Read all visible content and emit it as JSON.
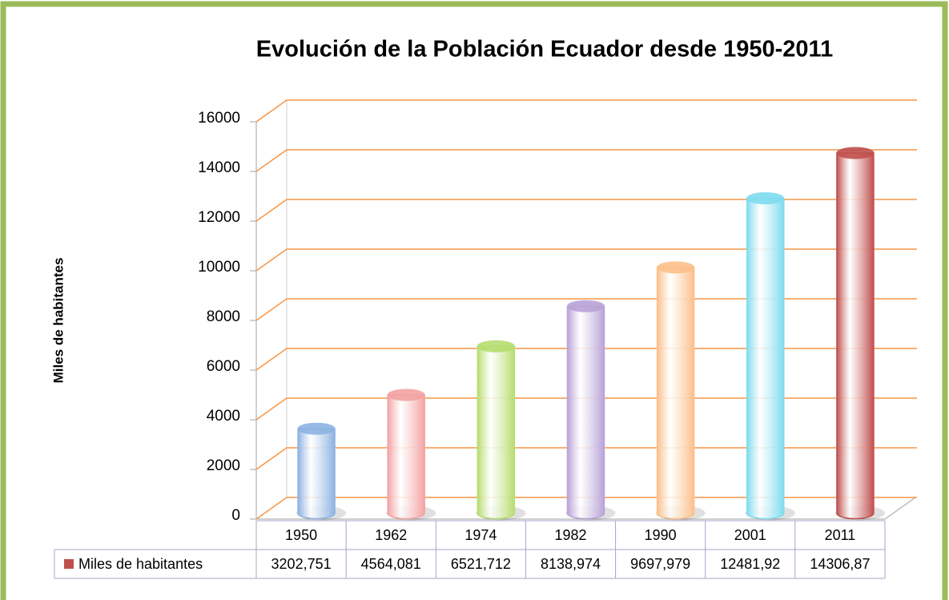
{
  "chart_data": {
    "type": "bar3d",
    "title": "Evolución  de la Población Ecuador  desde 1950-2011",
    "y_label": "Miles de habitantes",
    "categories": [
      "1950",
      "1962",
      "1974",
      "1982",
      "1990",
      "2001",
      "2011"
    ],
    "series": [
      {
        "name": "Miles de habitantes",
        "color": "#c0504d",
        "values": [
          3202.751,
          4564.081,
          6521.712,
          8138.974,
          9697.979,
          12481.92,
          14306.87
        ],
        "value_labels": [
          "3202,751",
          "4564,081",
          "6521,712",
          "8138,974",
          "9697,979",
          "12481,92",
          "14306,87"
        ]
      }
    ],
    "colors": [
      "#8db3e2",
      "#f4a3a3",
      "#b7dd6f",
      "#b9a3d8",
      "#fbc08a",
      "#7fdcf0",
      "#c0504d"
    ],
    "ylim": [
      0,
      16000
    ],
    "yticks": [
      0,
      2000,
      4000,
      6000,
      8000,
      10000,
      12000,
      14000,
      16000
    ],
    "grid": true,
    "grid_color": "#f79646",
    "data_table": true
  }
}
